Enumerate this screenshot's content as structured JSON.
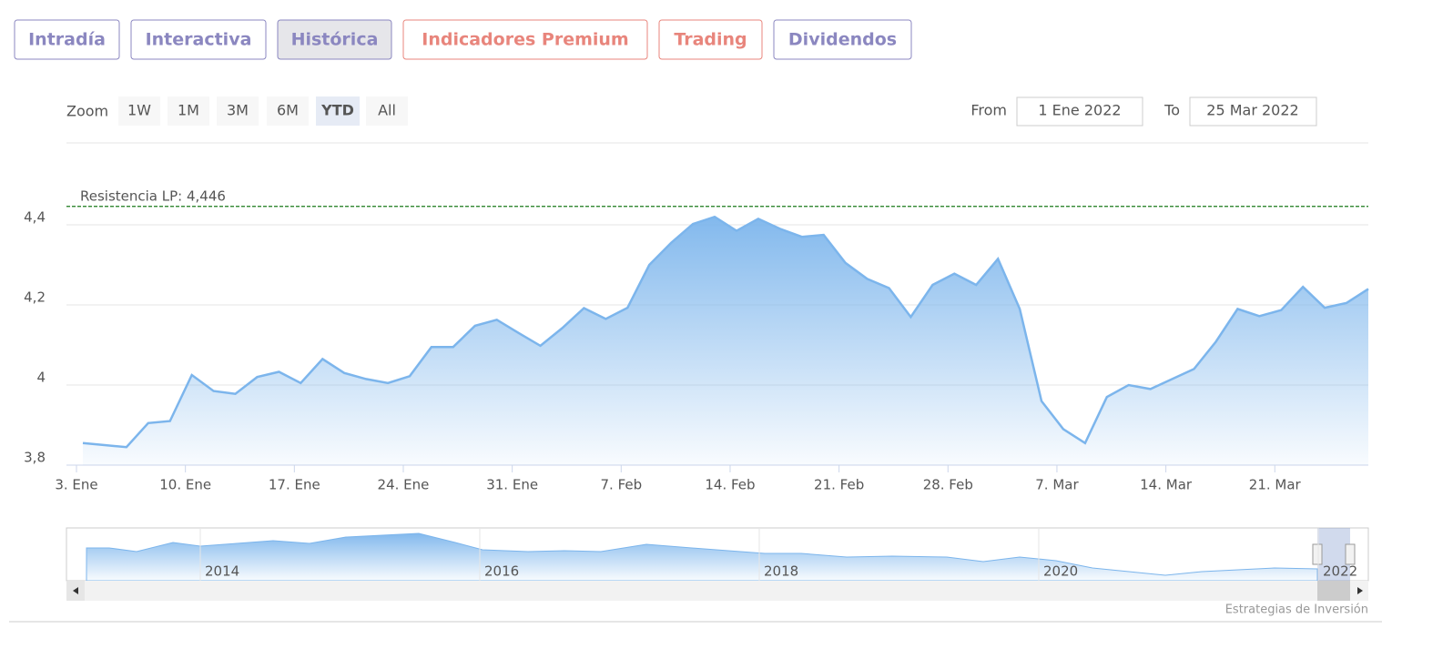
{
  "tabs": [
    {
      "label": "Intradía",
      "color": "#8b87c0"
    },
    {
      "label": "Interactiva",
      "color": "#8b87c0"
    },
    {
      "label": "Histórica",
      "color": "#8b87c0",
      "active": true
    },
    {
      "label": "Indicadores Premium",
      "color": "#e8857c"
    },
    {
      "label": "Trading",
      "color": "#e8857c"
    },
    {
      "label": "Dividendos",
      "color": "#8b87c0"
    }
  ],
  "zoom": {
    "label": "Zoom",
    "buttons": [
      "1W",
      "1M",
      "3M",
      "6M",
      "YTD",
      "All"
    ],
    "selected": 4
  },
  "range": {
    "from_label": "From",
    "from": "1 Ene 2022",
    "to_label": "To",
    "to": "25 Mar 2022"
  },
  "chart_data": {
    "type": "area",
    "categories": [
      "3. Ene",
      null,
      null,
      null,
      null,
      "10. Ene",
      null,
      null,
      null,
      null,
      "17. Ene",
      null,
      null,
      null,
      null,
      "24. Ene",
      null,
      null,
      null,
      null,
      "31. Ene",
      null,
      null,
      null,
      null,
      "7. Feb",
      null,
      null,
      null,
      null,
      "14. Feb",
      null,
      null,
      null,
      null,
      "21. Feb",
      null,
      null,
      null,
      null,
      "28. Feb",
      null,
      null,
      null,
      null,
      "7. Mar",
      null,
      null,
      null,
      null,
      "14. Mar",
      null,
      null,
      null,
      null,
      "21. Mar",
      null,
      null,
      null,
      null
    ],
    "series": [
      {
        "color": "#7cb5ec",
        "values": [
          3.855,
          3.85,
          3.845,
          3.905,
          3.91,
          4.025,
          3.985,
          3.978,
          4.02,
          4.033,
          4.005,
          4.065,
          4.03,
          4.015,
          4.005,
          4.022,
          4.095,
          4.095,
          4.148,
          4.163,
          4.13,
          4.098,
          4.142,
          4.192,
          4.165,
          4.193,
          4.3,
          4.355,
          4.402,
          4.42,
          4.385,
          4.415,
          4.39,
          4.37,
          4.375,
          4.305,
          4.265,
          4.242,
          4.17,
          4.25,
          4.278,
          4.25,
          4.315,
          4.19,
          3.96,
          3.89,
          3.855,
          3.97,
          4.0,
          3.99,
          4.015,
          4.04,
          4.108,
          4.19,
          4.172,
          4.187,
          4.245,
          4.193,
          4.205,
          4.24
        ]
      }
    ],
    "ylim": [
      3.8,
      4.6
    ],
    "yticks": [
      {
        "value": 3.8,
        "label": "3,8"
      },
      4,
      {
        "value": 4.2,
        "label": "4,2"
      },
      {
        "value": 4.4,
        "label": "4,4"
      }
    ],
    "grid": true,
    "annotations": [
      {
        "label": "Resistencia LP: 4,446",
        "value": 4.446,
        "color": "#1a7a1a"
      }
    ]
  },
  "navigator": {
    "labels": [
      "2014",
      "2016",
      "2018",
      "2020",
      "2022"
    ]
  },
  "credit": "Estrategias de Inversión"
}
